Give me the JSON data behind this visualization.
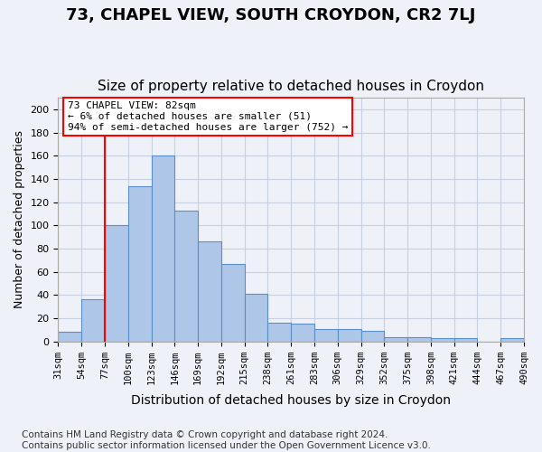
{
  "title": "73, CHAPEL VIEW, SOUTH CROYDON, CR2 7LJ",
  "subtitle": "Size of property relative to detached houses in Croydon",
  "xlabel": "Distribution of detached houses by size in Croydon",
  "ylabel": "Number of detached properties",
  "bin_labels": [
    "31sqm",
    "54sqm",
    "77sqm",
    "100sqm",
    "123sqm",
    "146sqm",
    "169sqm",
    "192sqm",
    "215sqm",
    "238sqm",
    "261sqm",
    "283sqm",
    "306sqm",
    "329sqm",
    "352sqm",
    "375sqm",
    "398sqm",
    "421sqm",
    "444sqm",
    "467sqm",
    "490sqm"
  ],
  "bar_heights": [
    8,
    36,
    100,
    134,
    160,
    113,
    86,
    67,
    41,
    16,
    15,
    11,
    11,
    9,
    4,
    4,
    3,
    3,
    0,
    3
  ],
  "bar_color": "#aec6e8",
  "bar_edge_color": "#5b8fc9",
  "annotation_text": "73 CHAPEL VIEW: 82sqm\n← 6% of detached houses are smaller (51)\n94% of semi-detached houses are larger (752) →",
  "vline_color": "red",
  "annotation_box_color": "white",
  "annotation_box_edge": "red",
  "ylim": [
    0,
    210
  ],
  "yticks": [
    0,
    20,
    40,
    60,
    80,
    100,
    120,
    140,
    160,
    180,
    200
  ],
  "footer": "Contains HM Land Registry data © Crown copyright and database right 2024.\nContains public sector information licensed under the Open Government Licence v3.0.",
  "background_color": "#eef1f8",
  "grid_color": "#c8cfe0",
  "title_fontsize": 13,
  "subtitle_fontsize": 11,
  "xlabel_fontsize": 10,
  "ylabel_fontsize": 9,
  "footer_fontsize": 7.5
}
